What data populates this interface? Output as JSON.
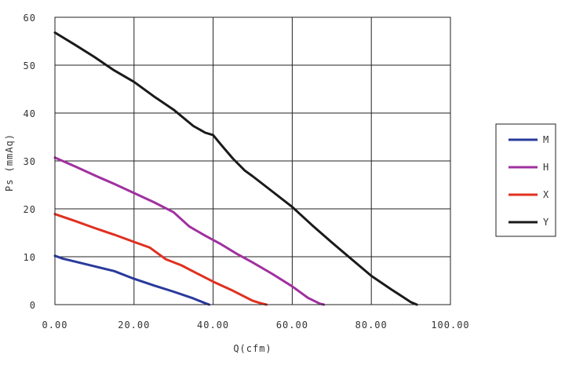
{
  "chart_data": {
    "type": "line",
    "xlabel": "Q(cfm)",
    "ylabel": "Ps (mmAq)",
    "xlim": [
      0,
      100
    ],
    "ylim": [
      0,
      60
    ],
    "x_ticks": [
      "0.00",
      "20.00",
      "40.00",
      "60.00",
      "80.00",
      "100.00"
    ],
    "y_ticks": [
      "0",
      "10",
      "20",
      "30",
      "40",
      "50",
      "60"
    ],
    "grid": true,
    "legend_position": "right",
    "series": [
      {
        "name": "M",
        "color": "#2a3a9c",
        "x": [
          0,
          2,
          5,
          10,
          15,
          20,
          25,
          30,
          35,
          38,
          39
        ],
        "y": [
          10.2,
          9.6,
          9.0,
          8.0,
          7.0,
          5.4,
          4.0,
          2.7,
          1.3,
          0.3,
          0
        ]
      },
      {
        "name": "H",
        "color": "#a030a0",
        "x": [
          0,
          5,
          10,
          15,
          20,
          25,
          30,
          34,
          38,
          42,
          46,
          50,
          55,
          60,
          64,
          67,
          68
        ],
        "y": [
          30.7,
          28.9,
          27.0,
          25.2,
          23.3,
          21.4,
          19.3,
          16.3,
          14.4,
          12.6,
          10.6,
          8.8,
          6.4,
          3.8,
          1.4,
          0.2,
          0
        ]
      },
      {
        "name": "X",
        "color": "#e03020",
        "x": [
          0,
          5,
          10,
          15,
          20,
          24,
          28,
          32,
          36,
          40,
          45,
          50,
          52,
          53.5
        ],
        "y": [
          18.9,
          17.5,
          16.0,
          14.6,
          13.1,
          11.9,
          9.5,
          8.2,
          6.5,
          4.8,
          2.9,
          0.8,
          0.3,
          0
        ]
      },
      {
        "name": "Y",
        "color": "#1a1a1a",
        "x": [
          0,
          5,
          10,
          12.5,
          15,
          20,
          25,
          30,
          35,
          38,
          40,
          42,
          45,
          48,
          50,
          55,
          60,
          65,
          70,
          75,
          80,
          85,
          88,
          90,
          91.5
        ],
        "y": [
          56.8,
          54.3,
          51.7,
          50.3,
          48.9,
          46.5,
          43.5,
          40.7,
          37.3,
          35.9,
          35.4,
          33.4,
          30.5,
          28.0,
          26.8,
          23.6,
          20.4,
          16.6,
          13.0,
          9.5,
          6.0,
          3.2,
          1.6,
          0.5,
          0
        ]
      }
    ]
  }
}
